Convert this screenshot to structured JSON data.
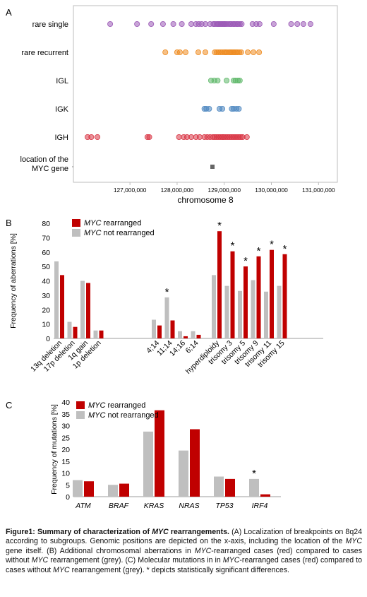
{
  "chart_data": [
    {
      "panel_label": "A",
      "type": "scatter",
      "xlabel": "chromosome 8",
      "xlim": [
        125800000,
        131400000
      ],
      "x_ticks": [
        127000000,
        128000000,
        129000000,
        130000000,
        131000000
      ],
      "x_tick_labels": [
        "127,000,000",
        "128,000,000",
        "129,000,000",
        "130,000,000",
        "131,000,000"
      ],
      "grid": false,
      "rows": [
        {
          "name": "rare single",
          "color": "#9b59b6",
          "x": [
            126580000,
            127150000,
            127450000,
            127700000,
            127920000,
            128100000,
            128300000,
            128400000,
            128460000,
            128520000,
            128600000,
            128700000,
            128770000,
            128800000,
            128840000,
            128870000,
            128900000,
            128930000,
            128960000,
            128990000,
            129010000,
            129040000,
            129080000,
            129120000,
            129150000,
            129190000,
            129220000,
            129260000,
            129290000,
            129330000,
            129370000,
            129600000,
            129680000,
            129750000,
            130050000,
            130420000,
            130550000,
            130680000,
            130830000
          ]
        },
        {
          "name": "rare recurrent",
          "color": "#ee8c22",
          "x": [
            127750000,
            128000000,
            128060000,
            128180000,
            128450000,
            128600000,
            128800000,
            128840000,
            128880000,
            128920000,
            128960000,
            129000000,
            129030000,
            129060000,
            129100000,
            129130000,
            129160000,
            129190000,
            129220000,
            129250000,
            129280000,
            129320000,
            129360000,
            129500000,
            129620000,
            129740000
          ]
        },
        {
          "name": "IGL",
          "color": "#5fb86a",
          "x": [
            128720000,
            128790000,
            128860000,
            129050000,
            129200000,
            129240000,
            129290000,
            129330000
          ]
        },
        {
          "name": "IGK",
          "color": "#4a85bf",
          "x": [
            128580000,
            128620000,
            128680000,
            128900000,
            128960000,
            129160000,
            129200000,
            129260000,
            129310000
          ]
        },
        {
          "name": "IGH",
          "color": "#d93645",
          "x": [
            126100000,
            126180000,
            126310000,
            127370000,
            127410000,
            128040000,
            128140000,
            128210000,
            128300000,
            128400000,
            128480000,
            128580000,
            128640000,
            128700000,
            128760000,
            128800000,
            128840000,
            128880000,
            128920000,
            128960000,
            128990000,
            129030000,
            129070000,
            129110000,
            129150000,
            129190000,
            129230000,
            129270000,
            129310000,
            129350000,
            129390000,
            129480000
          ]
        },
        {
          "name": "location of the\nMYC gene",
          "name_lines": [
            "location of the",
            "MYC gene"
          ],
          "color": "#666666",
          "marker": "square",
          "x": [
            128750000
          ]
        }
      ]
    },
    {
      "panel_label": "B",
      "type": "bar",
      "ylabel": "Frequency of aberrations [%]",
      "ylim": [
        0,
        80
      ],
      "yticks": [
        0,
        10,
        20,
        30,
        40,
        50,
        60,
        70,
        80
      ],
      "legend_position": "top-left",
      "categories": [
        "13q deletion",
        "17p deletion",
        "1q gain",
        "1p deletion",
        "4;14",
        "11;14",
        "14;16",
        "6;14",
        "hyperdiploidy",
        "trisomy 3",
        "trisomy 5",
        "trisomy 9",
        "trisomy 11",
        "trisomy 15"
      ],
      "category_groups": [
        4,
        4,
        6
      ],
      "series": [
        {
          "name": "MYC not rearranged",
          "name_italic": "MYC",
          "name_rest": " not rearranged",
          "color": "#bfbfbf",
          "values": [
            53.5,
            11.5,
            40,
            5.5,
            13,
            28.5,
            5,
            5,
            44,
            36.5,
            33,
            40.5,
            32.5,
            36.5
          ]
        },
        {
          "name": "MYC rearranged",
          "name_italic": "MYC",
          "name_rest": " rearranged",
          "color": "#c00000",
          "values": [
            44,
            8,
            38.5,
            5.5,
            9,
            12.5,
            1.5,
            2.5,
            74.5,
            60.5,
            50,
            57,
            61.5,
            58.5
          ]
        }
      ],
      "significance_marker": "*",
      "significant": [
        {
          "category": "11;14",
          "series": "MYC not rearranged"
        },
        {
          "category": "hyperdiploidy",
          "series": "MYC rearranged"
        },
        {
          "category": "trisomy 3",
          "series": "MYC rearranged"
        },
        {
          "category": "trisomy 5",
          "series": "MYC rearranged"
        },
        {
          "category": "trisomy 9",
          "series": "MYC rearranged"
        },
        {
          "category": "trisomy 11",
          "series": "MYC rearranged"
        },
        {
          "category": "trisomy 15",
          "series": "MYC rearranged"
        }
      ]
    },
    {
      "panel_label": "C",
      "type": "bar",
      "ylabel": "Frequency of mutations [%]",
      "ylim": [
        0,
        40
      ],
      "yticks": [
        0,
        5,
        10,
        15,
        20,
        25,
        30,
        35,
        40
      ],
      "legend_position": "top-left",
      "categories": [
        "ATM",
        "BRAF",
        "KRAS",
        "NRAS",
        "TP53",
        "IRF4"
      ],
      "category_italic": true,
      "series": [
        {
          "name": "MYC not rearranged",
          "name_italic": "MYC",
          "name_rest": " not rearranged",
          "color": "#bfbfbf",
          "values": [
            7,
            5,
            27.5,
            19.5,
            8.5,
            7.5
          ]
        },
        {
          "name": "MYC rearranged",
          "name_italic": "MYC",
          "name_rest": " rearranged",
          "color": "#c00000",
          "values": [
            6.5,
            5.5,
            36.5,
            28.5,
            7.5,
            1
          ]
        }
      ],
      "significance_marker": "*",
      "significant": [
        {
          "category": "IRF4",
          "series": "MYC not rearranged"
        }
      ]
    }
  ],
  "caption": {
    "figure_label": "Figure1: Summary of characterization of ",
    "figure_italic": "MYC",
    "figure_rest": " rearrangements.",
    "p1": " (A) Localization of breakpoints on 8q24 according to subgroups. Genomic positions are depicted on the x-axis, including the location of the ",
    "i1": "MYC",
    "p2": " gene itself. (B) Additional chromosomal aberrations in ",
    "i2": "MYC",
    "p3": "-rearranged cases (red) compared to cases without ",
    "i3": "MYC",
    "p4": " rearrangement (grey). (C) Molecular mutations in in ",
    "i4": "MYC",
    "p5": "-rearranged cases (red) compared to cases without ",
    "i5": "MYC",
    "p6": " rearrangement (grey). * depicts statistically significant differences."
  }
}
